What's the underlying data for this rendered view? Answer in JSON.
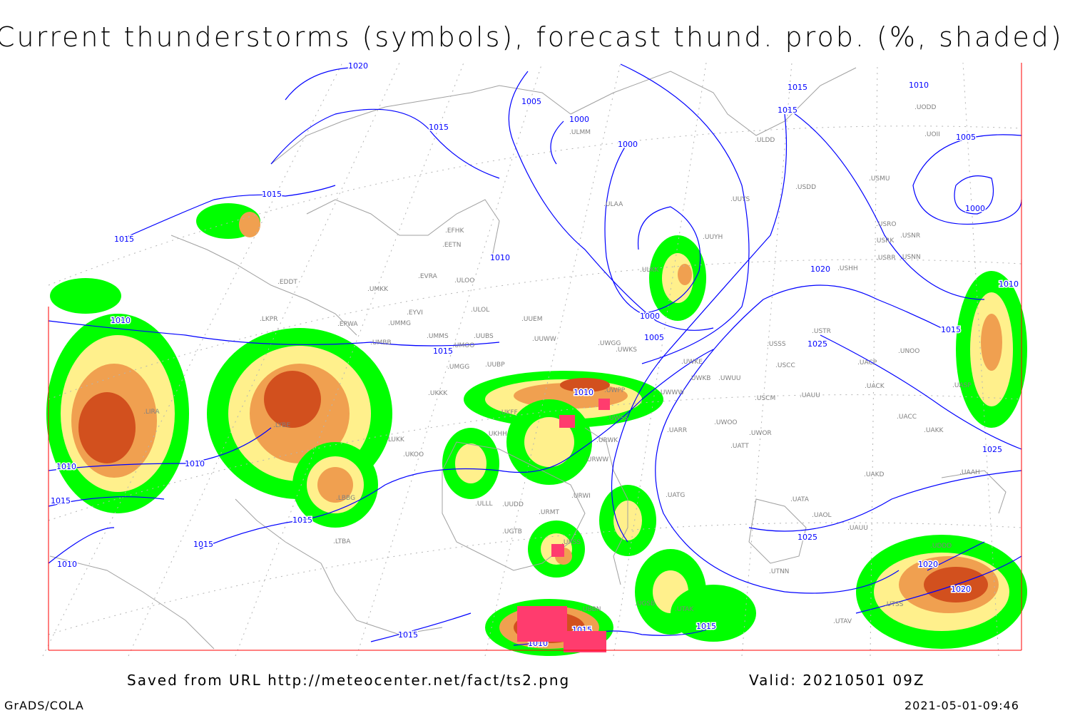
{
  "title": "Current thunderstorms (symbols), forecast thund. prob. (%, shaded)",
  "footer": {
    "saved_from": "Saved from URL http://meteocenter.net/fact/ts2.png",
    "valid": "Valid: 20210501 09Z",
    "software": "GrADS/COLA",
    "timestamp": "2021-05-01-09:46"
  },
  "colors": {
    "isobar": "#0000ff",
    "coastline": "#a0a0a0",
    "prob_low": "#00ff00",
    "prob_mid": "#fff08c",
    "prob_high": "#f0a050",
    "prob_very_high": "#d2501e",
    "thunderstorm_symbol": "#ff3c6e",
    "frame": "#ff0000"
  },
  "isobar_labels": [
    "1020",
    "1015",
    "1005",
    "1000",
    "1000",
    "1015",
    "1015",
    "1010",
    "1005",
    "1000",
    "1015",
    "1015",
    "1010",
    "1020",
    "1010",
    "1000",
    "1005",
    "1025",
    "1010",
    "1015",
    "1010",
    "1010",
    "1010",
    "1015",
    "1015",
    "1010",
    "1015",
    "1025",
    "1020",
    "1020",
    "1015",
    "1015",
    "1025",
    "1015",
    "1015",
    "1010"
  ],
  "stations": [
    "ULDD",
    "USDD",
    "UUYS",
    "USMU",
    "UODD",
    "UOII",
    "ULMM",
    "ULAA",
    "UUYH",
    "USRO",
    "USRK",
    "USNR",
    "USRR",
    "USNN",
    "USHH",
    "ULKK",
    "EFHK",
    "EETN",
    "EVRA",
    "ULOO",
    "ULOL",
    "UMKK",
    "EYVI",
    "EDDT",
    "UMMG",
    "UMMS",
    "UMOO",
    "UUBS",
    "UUEM",
    "UUWW",
    "LKPR",
    "EPWA",
    "UMBB",
    "UWGG",
    "UWKS",
    "USSS",
    "USTR",
    "UNOO",
    "UMGG",
    "UUBP",
    "USCC",
    "UWKE",
    "UWKB",
    "UWWW",
    "UWUU",
    "UACP",
    "UACK",
    "UASP",
    "UKKK",
    "USCM",
    "UAUU",
    "LIRA",
    "LYBE",
    "UKFF",
    "LUKK",
    "UKOO",
    "UWPP",
    "UWSS",
    "UARR",
    "UWOO",
    "UWOR",
    "UACC",
    "UAKK",
    "URWK",
    "URWW",
    "UATT",
    "UAKD",
    "UAAH",
    "LBBG",
    "URWI",
    "UATG",
    "UATA",
    "UAOL",
    "UAUU",
    "URMT",
    "UTNN",
    "UTAK",
    "UGSB",
    "UBBN",
    "LTBA",
    "UDDD",
    "UTAV",
    "ULLL",
    "UUDD",
    "UKHH",
    "URSS",
    "UGTB",
    "UTSS"
  ]
}
